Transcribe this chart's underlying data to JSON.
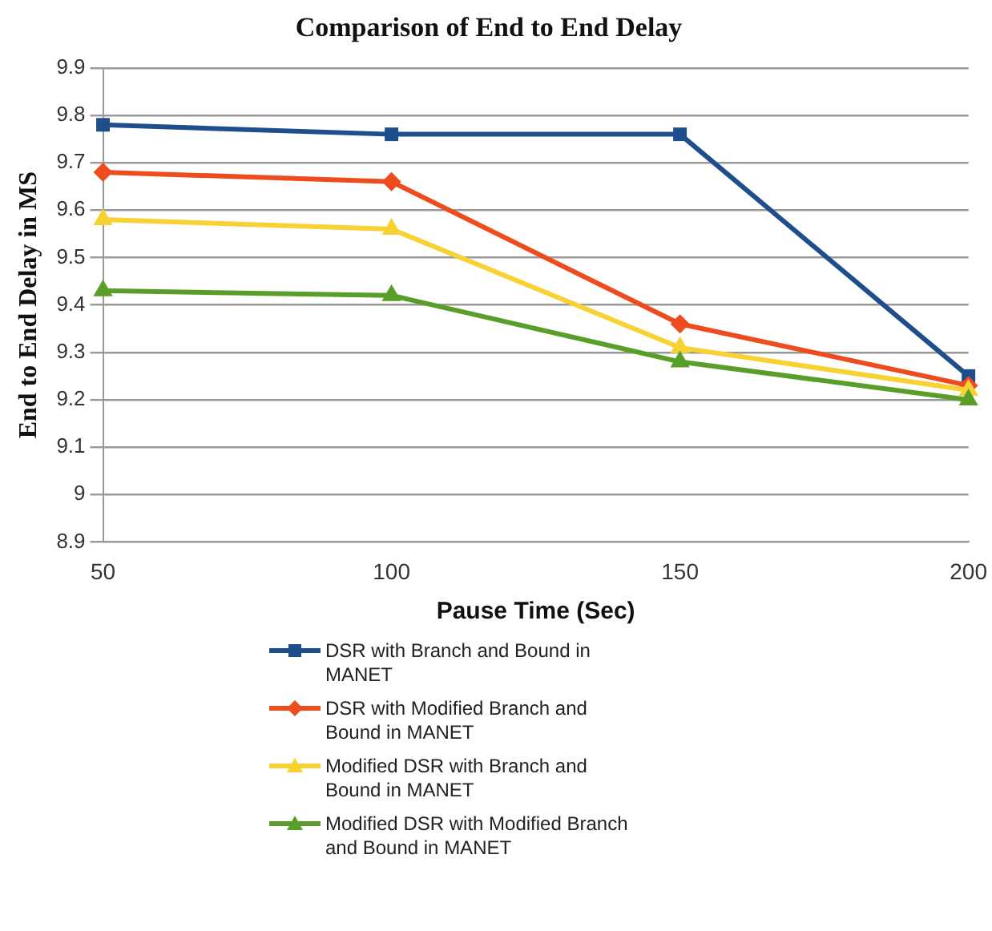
{
  "chart_data": {
    "type": "line",
    "title": "Comparison of End to End Delay",
    "xlabel": "Pause Time (Sec)",
    "ylabel": "End to End Delay in MS",
    "x": [
      50,
      100,
      150,
      200
    ],
    "series": [
      {
        "name": "DSR with Branch and Bound in MANET",
        "color": "#1f4e8c",
        "marker": "square",
        "values": [
          9.78,
          9.76,
          9.76,
          9.25
        ]
      },
      {
        "name": "DSR with Modified Branch and Bound in MANET",
        "color": "#ee4b1f",
        "marker": "diamond",
        "values": [
          9.68,
          9.66,
          9.36,
          9.23
        ]
      },
      {
        "name": "Modified DSR with Branch and Bound in MANET",
        "color": "#f7d232",
        "marker": "triangle",
        "values": [
          9.58,
          9.56,
          9.31,
          9.22
        ]
      },
      {
        "name": "Modified DSR with Modified Branch and Bound in MANET",
        "color": "#5a9e2a",
        "marker": "triangle",
        "values": [
          9.43,
          9.42,
          9.28,
          9.2
        ]
      }
    ],
    "xlim": [
      50,
      200
    ],
    "xticks": [
      50,
      100,
      150,
      200
    ],
    "ylim": [
      8.9,
      9.9
    ],
    "yticks": [
      8.9,
      9,
      9.1,
      9.2,
      9.3,
      9.4,
      9.5,
      9.6,
      9.7,
      9.8,
      9.9
    ],
    "grid": "y",
    "legend": "bottom",
    "line_style": "solid"
  }
}
